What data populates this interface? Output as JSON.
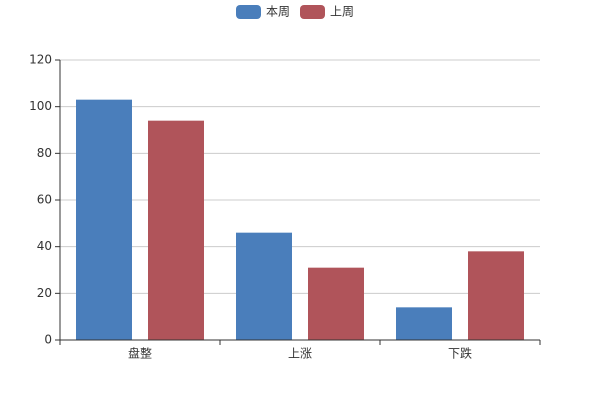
{
  "chart_data": {
    "type": "bar",
    "categories": [
      "盘整",
      "上涨",
      "下跌"
    ],
    "series": [
      {
        "name": "本周",
        "color": "#4a7ebb",
        "values": [
          103,
          46,
          14
        ]
      },
      {
        "name": "上周",
        "color": "#b0545a",
        "values": [
          94,
          31,
          38
        ]
      }
    ],
    "ylim": [
      0,
      120
    ],
    "yticks": [
      0,
      20,
      40,
      60,
      80,
      100,
      120
    ],
    "grid": true,
    "legend": "top"
  }
}
